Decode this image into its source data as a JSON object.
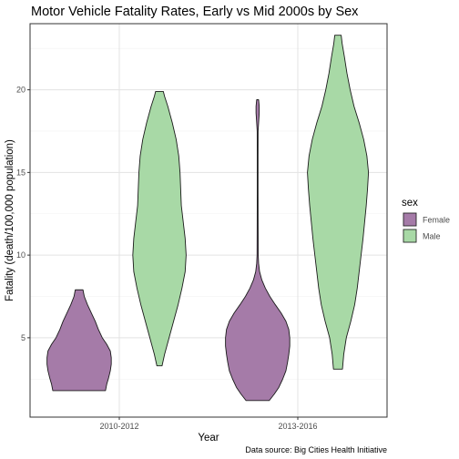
{
  "chart_data": {
    "type": "violin",
    "title": "Motor Vehicle Fatality Rates, Early vs Mid 2000s by Sex",
    "xlabel": "Year",
    "ylabel": "Fatality (death/100,000 population)",
    "caption": "Data source: Big Cities Health Initiative",
    "categories": [
      "2010-2012",
      "2013-2016"
    ],
    "ylim": [
      0.2,
      24.0
    ],
    "yticks": [
      5,
      10,
      15,
      20
    ],
    "grid": true,
    "legend": {
      "title": "sex",
      "position": "right"
    },
    "series": [
      {
        "name": "Female",
        "color": "#A57BA8",
        "groups": [
          {
            "category": "2010-2012",
            "min": 1.8,
            "max": 7.9,
            "profile": [
              [
                1.8,
                0.82
              ],
              [
                2.2,
                0.86
              ],
              [
                2.6,
                0.92
              ],
              [
                3.0,
                0.97
              ],
              [
                3.4,
                1.0
              ],
              [
                3.8,
                1.0
              ],
              [
                4.2,
                0.97
              ],
              [
                4.6,
                0.86
              ],
              [
                5.0,
                0.72
              ],
              [
                5.5,
                0.6
              ],
              [
                6.0,
                0.5
              ],
              [
                6.5,
                0.38
              ],
              [
                7.0,
                0.26
              ],
              [
                7.5,
                0.16
              ],
              [
                7.9,
                0.12
              ]
            ]
          },
          {
            "category": "2013-2016",
            "min": 1.2,
            "max": 19.4,
            "profile": [
              [
                1.2,
                0.36
              ],
              [
                1.6,
                0.52
              ],
              [
                2.0,
                0.66
              ],
              [
                2.5,
                0.78
              ],
              [
                3.0,
                0.88
              ],
              [
                3.5,
                0.93
              ],
              [
                4.0,
                0.97
              ],
              [
                4.5,
                1.0
              ],
              [
                5.0,
                1.0
              ],
              [
                5.5,
                0.97
              ],
              [
                6.0,
                0.88
              ],
              [
                6.5,
                0.73
              ],
              [
                7.0,
                0.55
              ],
              [
                7.5,
                0.38
              ],
              [
                8.0,
                0.24
              ],
              [
                8.5,
                0.13
              ],
              [
                9.0,
                0.06
              ],
              [
                9.5,
                0.03
              ],
              [
                10.0,
                0.018
              ],
              [
                12.0,
                0.014
              ],
              [
                14.0,
                0.012
              ],
              [
                16.0,
                0.012
              ],
              [
                17.5,
                0.014
              ],
              [
                18.0,
                0.03
              ],
              [
                18.6,
                0.05
              ],
              [
                19.0,
                0.05
              ],
              [
                19.4,
                0.03
              ]
            ]
          }
        ]
      },
      {
        "name": "Male",
        "color": "#A8D9A6",
        "groups": [
          {
            "category": "2010-2012",
            "min": 3.3,
            "max": 19.9,
            "profile": [
              [
                3.3,
                0.08
              ],
              [
                4.0,
                0.16
              ],
              [
                5.0,
                0.3
              ],
              [
                6.0,
                0.44
              ],
              [
                7.0,
                0.58
              ],
              [
                8.0,
                0.7
              ],
              [
                9.0,
                0.8
              ],
              [
                10.0,
                0.83
              ],
              [
                11.0,
                0.8
              ],
              [
                12.0,
                0.74
              ],
              [
                13.0,
                0.68
              ],
              [
                14.0,
                0.66
              ],
              [
                15.0,
                0.64
              ],
              [
                16.0,
                0.6
              ],
              [
                17.0,
                0.52
              ],
              [
                18.0,
                0.4
              ],
              [
                19.0,
                0.26
              ],
              [
                19.6,
                0.16
              ],
              [
                19.9,
                0.12
              ]
            ]
          },
          {
            "category": "2013-2016",
            "min": 3.1,
            "max": 23.3,
            "profile": [
              [
                3.1,
                0.14
              ],
              [
                4.0,
                0.18
              ],
              [
                5.0,
                0.26
              ],
              [
                6.0,
                0.4
              ],
              [
                7.0,
                0.52
              ],
              [
                8.0,
                0.6
              ],
              [
                9.0,
                0.66
              ],
              [
                10.0,
                0.72
              ],
              [
                11.0,
                0.78
              ],
              [
                12.0,
                0.83
              ],
              [
                13.0,
                0.88
              ],
              [
                14.0,
                0.92
              ],
              [
                15.0,
                0.95
              ],
              [
                16.0,
                0.9
              ],
              [
                17.0,
                0.8
              ],
              [
                18.0,
                0.66
              ],
              [
                19.0,
                0.5
              ],
              [
                20.0,
                0.38
              ],
              [
                21.0,
                0.28
              ],
              [
                22.0,
                0.2
              ],
              [
                22.8,
                0.13
              ],
              [
                23.3,
                0.1
              ]
            ]
          }
        ]
      }
    ]
  }
}
